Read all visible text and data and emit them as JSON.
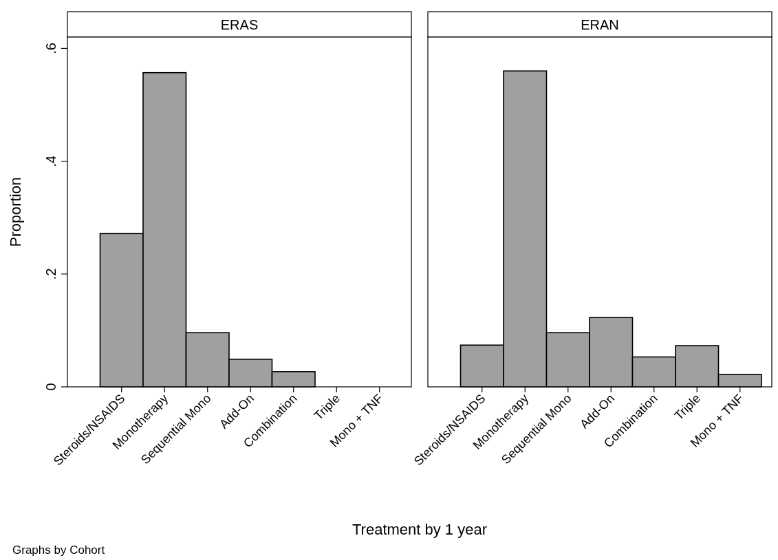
{
  "chart_data": [
    {
      "type": "bar",
      "title": "ERAS",
      "ylabel": "Proportion",
      "xlabel": "Treatment by 1 year",
      "annotations": [
        "Graphs by Cohort"
      ],
      "categories": [
        "Steroids/NSAIDS",
        "Monotherapy",
        "Sequential Mono",
        "Add-On",
        "Combination",
        "Triple",
        "Mono + TNF"
      ],
      "values": [
        0.272,
        0.557,
        0.096,
        0.049,
        0.027,
        0,
        0
      ],
      "color": "#a0a0a0",
      "ylim": [
        0,
        0.62
      ],
      "yticks": [
        {
          "value": 0,
          "label": "0"
        },
        {
          "value": 0.2,
          "label": ".2"
        },
        {
          "value": 0.4,
          "label": ".4"
        },
        {
          "value": 0.6,
          "label": ".6"
        }
      ],
      "grid": false
    },
    {
      "type": "bar",
      "title": "ERAN",
      "categories": [
        "Steroids/NSAIDS",
        "Monotherapy",
        "Sequential Mono",
        "Add-On",
        "Combination",
        "Triple",
        "Mono + TNF"
      ],
      "values": [
        0.074,
        0.56,
        0.096,
        0.123,
        0.053,
        0.073,
        0.022
      ],
      "color": "#a0a0a0",
      "ylim": [
        0,
        0.62
      ],
      "grid": false,
      "tick_labels": "x"
    }
  ]
}
